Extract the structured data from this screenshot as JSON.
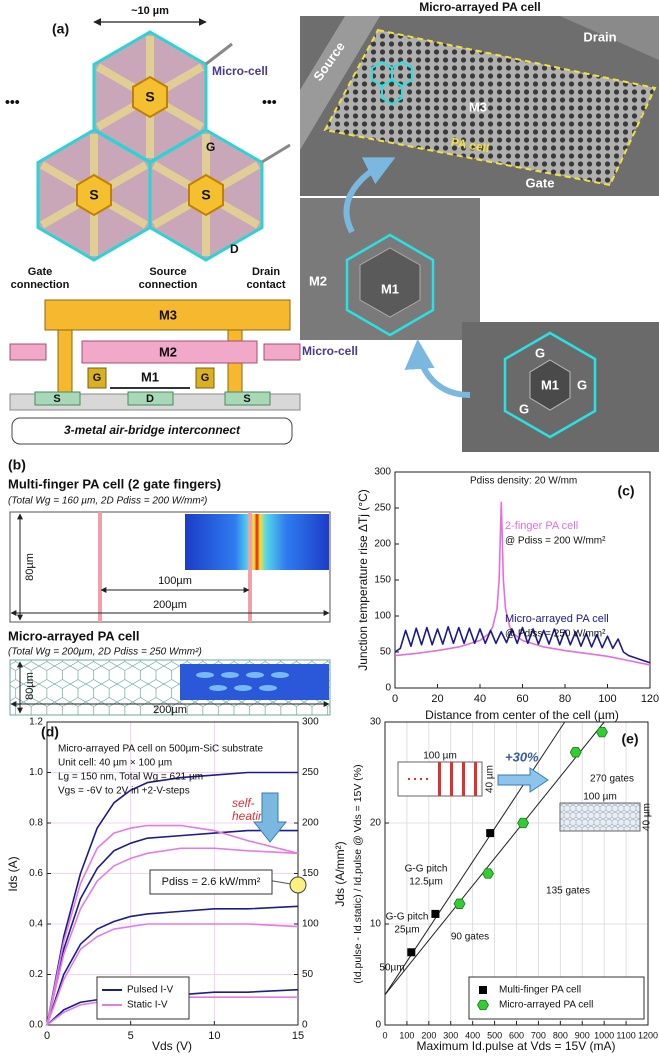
{
  "panel_a": {
    "label": "(a)",
    "scale": "~10 µm",
    "micro_cell": "Micro-cell",
    "ellipsis": [
      "•••",
      "•••"
    ],
    "source_labels": [
      "S",
      "S",
      "S"
    ],
    "gate_label": "G",
    "drain_label": "D",
    "gate_connection": [
      "Gate",
      "connection"
    ],
    "source_connection": [
      "Source",
      "connection"
    ],
    "drain_contact": [
      "Drain",
      "contact"
    ],
    "cross_section": {
      "metals": [
        "M3",
        "M2",
        "M1"
      ],
      "gates": [
        "G",
        "G"
      ],
      "contacts": [
        "S",
        "D",
        "S"
      ],
      "caption": "3-metal air-bridge interconnect"
    },
    "sem": {
      "title": "Micro-arrayed PA cell",
      "top": [
        "Source",
        "Drain",
        "M3",
        "PA cell",
        "Gate"
      ],
      "middle": [
        "M2",
        "M1",
        "Micro-cell"
      ],
      "bottom": [
        "G",
        "M1",
        "G",
        "G"
      ]
    }
  },
  "panel_b": {
    "label": "(b)",
    "multi_finger": {
      "title": "Multi-finger PA cell (2 gate fingers)",
      "subtitle": "(Total Wg = 160 µm, 2D Pdiss = 200 W/mm²)",
      "dims": [
        "80µm",
        "100µm",
        "200µm"
      ]
    },
    "micro_arrayed": {
      "title": "Micro-arrayed PA cell",
      "subtitle": "(Total Wg = 200µm, 2D Pdiss = 250 Wmm²)",
      "dims": [
        "80µm",
        "200µm"
      ]
    }
  },
  "chart_data": [
    {
      "type": "line",
      "label": "(c)",
      "xlabel": "Distance from center of the cell (µm)",
      "ylabel": "Junction temperature rise ΔTj (°C)",
      "xlim": [
        0,
        120
      ],
      "xticks": [
        0,
        20,
        40,
        60,
        80,
        100,
        120
      ],
      "ylim": [
        0,
        300
      ],
      "yticks": [
        0,
        50,
        100,
        150,
        200,
        250,
        300
      ],
      "grid": false,
      "legend": false,
      "annotations": [
        "Pdiss density: 20 W/mm",
        "@ Pdiss = 200 W/mm²",
        "@ Pdiss = 250 W/mm²"
      ],
      "series": [
        {
          "name": "2-finger PA cell",
          "color": "#e070e0",
          "x": [
            0,
            10,
            20,
            30,
            40,
            44,
            46,
            48,
            49,
            50,
            51,
            52,
            54,
            56,
            60,
            70,
            80,
            90,
            100,
            110,
            120
          ],
          "values": [
            45,
            48,
            52,
            57,
            66,
            75,
            85,
            110,
            150,
            258,
            150,
            110,
            85,
            75,
            66,
            57,
            52,
            48,
            44,
            38,
            32
          ]
        },
        {
          "name": "Micro-arrayed PA cell",
          "color": "#1a1a8a",
          "x": [
            0,
            2.5,
            5,
            7.5,
            10,
            12.5,
            15,
            17.5,
            20,
            22.5,
            25,
            27.5,
            30,
            32.5,
            35,
            37.5,
            40,
            42.5,
            45,
            47.5,
            50,
            52.5,
            55,
            57.5,
            60,
            62.5,
            65,
            67.5,
            70,
            72.5,
            75,
            77.5,
            80,
            82.5,
            85,
            87.5,
            90,
            92.5,
            95,
            97.5,
            100,
            102.5,
            105,
            107.5,
            110,
            115,
            120
          ],
          "values": [
            50,
            55,
            80,
            58,
            83,
            60,
            84,
            60,
            82,
            61,
            85,
            62,
            84,
            62,
            83,
            62,
            82,
            62,
            80,
            62,
            78,
            63,
            82,
            62,
            84,
            62,
            82,
            61,
            80,
            61,
            82,
            60,
            80,
            60,
            78,
            58,
            76,
            57,
            74,
            56,
            72,
            55,
            68,
            50,
            45,
            40,
            35
          ]
        }
      ]
    },
    {
      "type": "line",
      "label": "(d)",
      "xlabel": "Vds (V)",
      "ylabel": "Ids (A)",
      "y2label": "Jds (A/mm²)",
      "xlim": [
        0,
        15
      ],
      "xticks": [
        0,
        5,
        10,
        15
      ],
      "ylim": [
        0,
        1.2
      ],
      "yticks": [
        {
          "value": 0,
          "label": "0.0"
        },
        0.2,
        0.4,
        0.6,
        0.8,
        {
          "value": 1,
          "label": "1.0"
        },
        1.2
      ],
      "y2lim": [
        0,
        300
      ],
      "y2ticks": [
        0,
        50,
        100,
        150,
        200,
        250,
        300
      ],
      "grid": true,
      "grid_color": "#f4c4ea",
      "legend": "lower left",
      "x": [
        0,
        1,
        2,
        3,
        4,
        5,
        6,
        8,
        10,
        12,
        15
      ],
      "series": [
        {
          "name": "Pulsed I-V",
          "color": "#1c1c8c",
          "curves": [
            [
              0,
              0.35,
              0.6,
              0.78,
              0.88,
              0.93,
              0.96,
              0.98,
              0.99,
              1.0,
              1.0
            ],
            [
              0,
              0.3,
              0.5,
              0.62,
              0.69,
              0.72,
              0.74,
              0.75,
              0.76,
              0.77,
              0.77
            ],
            [
              0,
              0.2,
              0.32,
              0.38,
              0.41,
              0.43,
              0.44,
              0.45,
              0.46,
              0.46,
              0.47
            ],
            [
              0,
              0.06,
              0.09,
              0.1,
              0.11,
              0.11,
              0.12,
              0.12,
              0.13,
              0.13,
              0.14
            ]
          ]
        },
        {
          "name": "Static I-V",
          "color": "#e07ce6",
          "curves": [
            [
              0,
              0.33,
              0.56,
              0.7,
              0.76,
              0.78,
              0.79,
              0.79,
              0.77,
              0.73,
              0.68
            ],
            [
              0,
              0.28,
              0.46,
              0.57,
              0.63,
              0.66,
              0.68,
              0.7,
              0.7,
              0.69,
              0.68
            ],
            [
              0,
              0.18,
              0.3,
              0.35,
              0.38,
              0.39,
              0.4,
              0.4,
              0.4,
              0.4,
              0.39
            ],
            [
              0,
              0.05,
              0.08,
              0.09,
              0.1,
              0.1,
              0.1,
              0.11,
              0.11,
              0.11,
              0.11
            ]
          ]
        }
      ],
      "annotations": [
        "Micro-arrayed PA cell on 500µm-SiC substrate",
        "Unit cell: 40 µm × 100 µm",
        "Lg = 150 nm, Total Wg = 621 µm",
        "Vgs = -6V to 2V in +2-V-steps",
        [
          "self-",
          "heating"
        ],
        "Pdiss = 2.6 kW/mm²"
      ]
    },
    {
      "type": "scatter",
      "label": "(e)",
      "xlabel": "Maximum Id.pulse at Vds = 15V (mA)",
      "ylabel": "(Id.pulse - Id.static) / Id.pulse @ Vds = 15V (%)",
      "xlim": [
        0,
        1200
      ],
      "xticks": [
        0,
        100,
        200,
        300,
        400,
        500,
        600,
        700,
        800,
        900,
        1000,
        1100,
        1200
      ],
      "ylim": [
        0,
        30
      ],
      "yticks": [
        0,
        10,
        20,
        30
      ],
      "grid": true,
      "grid_color": "#d8d8d8",
      "legend": "lower right",
      "series": [
        {
          "name": "Multi-finger PA cell",
          "color": "#000000",
          "marker": "square",
          "x": [
            120,
            230,
            480
          ],
          "values": [
            7.2,
            11,
            19
          ]
        },
        {
          "name": "Micro-arrayed PA cell",
          "color": "#33cc33",
          "marker": "hexagon",
          "x": [
            340,
            470,
            630,
            870,
            990
          ],
          "values": [
            12,
            15,
            20,
            27,
            29
          ]
        }
      ],
      "fit_lines": [
        {
          "color": "#222222",
          "x": [
            0,
            820
          ],
          "values": [
            3,
            30
          ]
        },
        {
          "color": "#222222",
          "x": [
            0,
            1000
          ],
          "values": [
            3,
            30
          ]
        }
      ],
      "annotations": [
        "+30%",
        "100 µm",
        "40 µm",
        "100 µm",
        "40 µm",
        "270 gates",
        [
          "G-G pitch",
          "12.5µm"
        ],
        "135 gates",
        [
          "G-G pitch",
          "25µm"
        ],
        "90 gates",
        "50µm"
      ]
    }
  ]
}
